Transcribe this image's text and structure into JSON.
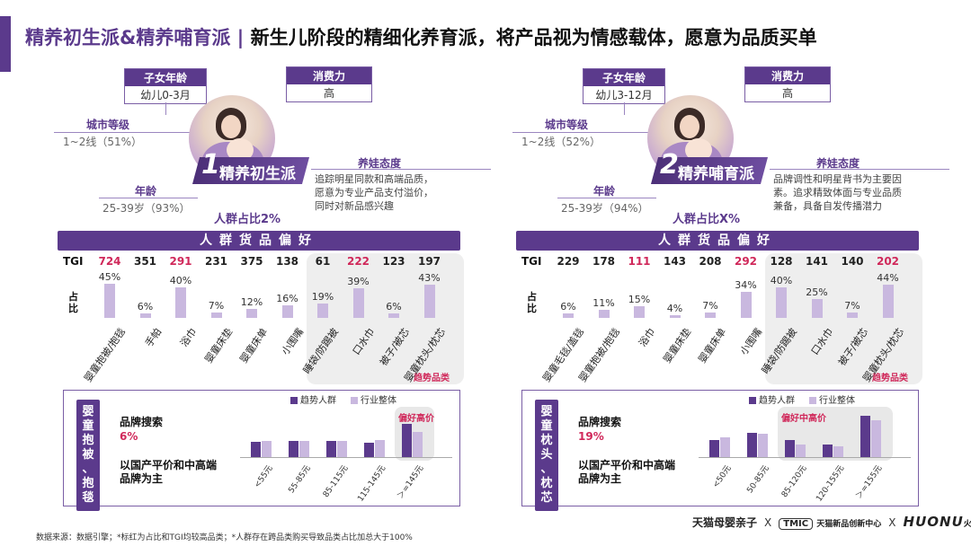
{
  "title": {
    "part1": "精养初生派&精养哺育派",
    "separator": " | ",
    "part2": "新生儿阶段的精细化养育派，将产品视为情感载体，愿意为品质买单"
  },
  "labels": {
    "child_age": "子女年龄",
    "spending": "消费力",
    "city_tier": "城市等级",
    "age": "年龄",
    "attitude": "养娃态度",
    "pref_band": "人群货品偏好",
    "tgi": "TGI",
    "share": "占比",
    "trend_category": "趋势品类",
    "brand_search": "品牌搜索",
    "legend_trend": "趋势人群",
    "legend_industry": "行业整体"
  },
  "colors": {
    "primary": "#5b3a8c",
    "light": "#c9b8df",
    "highlight": "#d0285a"
  },
  "panels": [
    {
      "segment_num": "1",
      "segment_name": "精养初生派",
      "child_age_value": "幼儿0-3月",
      "spending_value": "高",
      "city_value": "1~2线（51%）",
      "age_value": "25-39岁（93%）",
      "attitude_lines": [
        "追踪明星同款和高端品质，",
        "愿意为专业产品支付溢价，",
        "同时对新品感兴趣"
      ],
      "share_text": "人群占比2%",
      "categories": [
        "婴童抱被/抱毯",
        "手帕",
        "浴巾",
        "婴童床垫",
        "婴童床单",
        "小围嘴",
        "睡袋/防踢被",
        "口水巾",
        "被子/被芯",
        "婴童枕头/枕芯"
      ],
      "tgi": [
        724,
        351,
        291,
        231,
        375,
        138,
        61,
        222,
        123,
        197
      ],
      "tgi_high": [
        true,
        false,
        true,
        false,
        false,
        false,
        false,
        true,
        false,
        false
      ],
      "share_pct": [
        45,
        6,
        40,
        7,
        12,
        16,
        19,
        39,
        6,
        43
      ],
      "share_pct_text": [
        "45%",
        "6%",
        "40%",
        "7%",
        "12%",
        "16%",
        "19%",
        "39%",
        "6%",
        "43%"
      ],
      "trend_start": 6,
      "product_label": "婴童抱被、抱毯",
      "product_label_chars": [
        "婴",
        "童",
        "抱",
        "被",
        "、",
        "抱",
        "毯"
      ],
      "brand_search_pct": "6%",
      "brand_desc": "以国产平价和中高端品牌为主",
      "price_bands": [
        "<55元",
        "55-85元",
        "85-115元",
        "115-145元",
        "＞=145元"
      ],
      "price_trend": [
        0.35,
        0.36,
        0.37,
        0.32,
        0.75
      ],
      "price_industry": [
        0.37,
        0.37,
        0.37,
        0.38,
        0.57
      ],
      "price_highlight_label": "偏好高价",
      "highlight_start": 4
    },
    {
      "segment_num": "2",
      "segment_name": "精养哺育派",
      "child_age_value": "幼儿3-12月",
      "spending_value": "高",
      "city_value": "1~2线（52%）",
      "age_value": "25-39岁（94%）",
      "attitude_lines": [
        "品牌调性和明星背书为主要因",
        "素。追求精致体面与专业品质",
        "兼备，具备自发传播潜力"
      ],
      "share_text": "人群占比X%",
      "categories": [
        "婴童毛毯/盖毯",
        "婴童抱被/抱毯",
        "浴巾",
        "婴童床垫",
        "婴童床单",
        "小围嘴",
        "睡袋/防踢被",
        "口水巾",
        "被子/被芯",
        "婴童枕头/枕芯"
      ],
      "tgi": [
        229,
        178,
        111,
        143,
        208,
        292,
        128,
        141,
        140,
        202
      ],
      "tgi_high": [
        false,
        false,
        true,
        false,
        false,
        true,
        false,
        false,
        false,
        true
      ],
      "share_pct": [
        6,
        11,
        15,
        4,
        7,
        34,
        40,
        25,
        7,
        44
      ],
      "share_pct_text": [
        "6%",
        "11%",
        "15%",
        "4%",
        "7%",
        "34%",
        "40%",
        "25%",
        "7%",
        "44%"
      ],
      "trend_start": 6,
      "product_label": "婴童枕头、枕芯",
      "product_label_chars": [
        "婴",
        "童",
        "枕",
        "头",
        "、",
        "枕",
        "芯"
      ],
      "brand_search_pct": "19%",
      "brand_desc": "以国产平价和中高端品牌为主",
      "price_bands": [
        "<50元",
        "50-85元",
        "85-120元",
        "120-155元",
        "＞=155元"
      ],
      "price_trend": [
        0.38,
        0.55,
        0.38,
        0.28,
        0.93
      ],
      "price_industry": [
        0.45,
        0.53,
        0.29,
        0.24,
        0.82
      ],
      "price_highlight_label": "偏好中高价",
      "highlight_start": 2
    }
  ],
  "footnote": "数据来源：数据引擎；*标红为占比和TGI均较高品类；*人群存在跨品类购买导致品类占比加总大于100%",
  "logos": {
    "tmall": "天猫母婴亲子",
    "x": "X",
    "tmic": "TMIC",
    "tmic_sub": "天猫新品创新中心",
    "huonu": "HUONU",
    "huonu_badge": "火奴"
  }
}
